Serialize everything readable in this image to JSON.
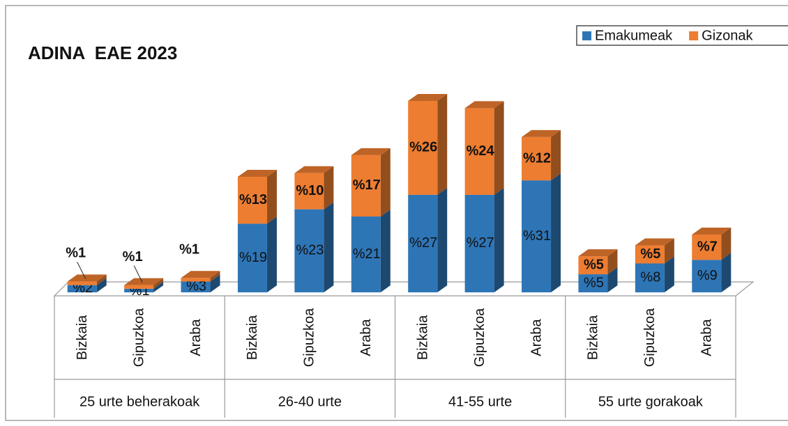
{
  "chart_data": {
    "type": "bar",
    "stacked": true,
    "title": "ADINA  EAE 2023",
    "groups": [
      {
        "name": "25 urte beherakoak",
        "categories": [
          "Bizkaia",
          "Gipuzkoa",
          "Araba"
        ]
      },
      {
        "name": "26-40 urte",
        "categories": [
          "Bizkaia",
          "Gipuzkoa",
          "Araba"
        ]
      },
      {
        "name": "41-55 urte",
        "categories": [
          "Bizkaia",
          "Gipuzkoa",
          "Araba"
        ]
      },
      {
        "name": "55 urte gorakoak",
        "categories": [
          "Bizkaia",
          "Gipuzkoa",
          "Araba"
        ]
      }
    ],
    "series": [
      {
        "name": "Emakumeak",
        "color": "#2e75b6",
        "values": [
          2,
          1,
          3,
          19,
          23,
          21,
          27,
          27,
          31,
          5,
          8,
          9
        ],
        "value_labels": [
          "%2",
          "%1",
          "%3",
          "%19",
          "%23",
          "%21",
          "%27",
          "%27",
          "%31",
          "%5",
          "%8",
          "%9"
        ]
      },
      {
        "name": "Gizonak",
        "color": "#ed7d31",
        "values": [
          1,
          1,
          1,
          13,
          10,
          17,
          26,
          24,
          12,
          5,
          5,
          7
        ],
        "value_labels": [
          "%1",
          "%1",
          "%1",
          "%13",
          "%10",
          "%17",
          "%26",
          "%24",
          "%12",
          "%5",
          "%5",
          "%7"
        ]
      }
    ],
    "legend": "top-right"
  }
}
